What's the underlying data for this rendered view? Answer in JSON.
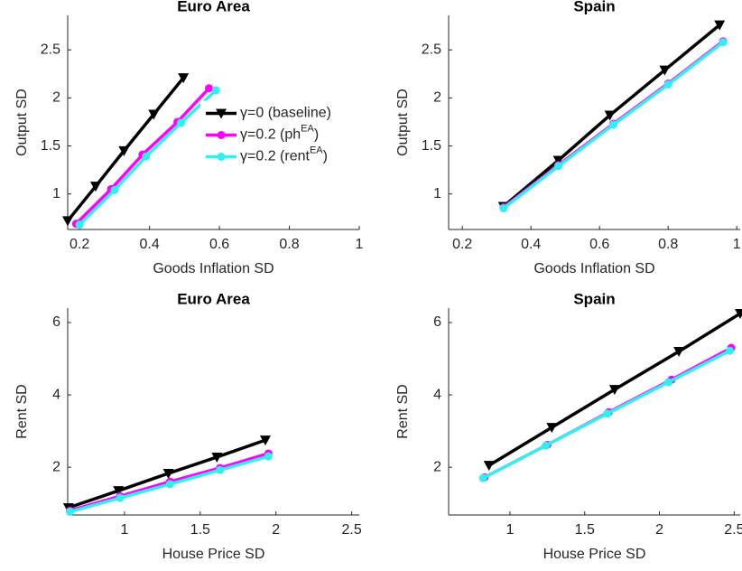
{
  "chart_data": [
    {
      "type": "line",
      "title": "Euro Area",
      "xlabel": "Goods Inflation SD",
      "ylabel": "Output SD",
      "xlim": [
        0.166,
        1.0
      ],
      "ylim": [
        0.63,
        2.86
      ],
      "xticks": [
        0.2,
        0.4,
        0.6,
        0.8,
        1
      ],
      "yticks": [
        1,
        1.5,
        2,
        2.5
      ],
      "legend": "east",
      "series": [
        {
          "name": "γ=0 (baseline)",
          "color": "#000000",
          "marker": "triangle-down",
          "x": [
            0.166,
            0.246,
            0.327,
            0.412,
            0.497
          ],
          "values": [
            0.72,
            1.08,
            1.45,
            1.83,
            2.21
          ]
        },
        {
          "name": "γ=0.2 (phEA)",
          "color": "#ff00ff",
          "marker": "circle",
          "x": [
            0.19,
            0.29,
            0.38,
            0.48,
            0.57
          ],
          "values": [
            0.69,
            1.05,
            1.41,
            1.75,
            2.1
          ]
        },
        {
          "name": "γ=0.2 (rentEA)",
          "color": "#33eeee",
          "marker": "circle",
          "x": [
            0.2,
            0.3,
            0.39,
            0.49,
            0.59
          ],
          "values": [
            0.68,
            1.04,
            1.39,
            1.74,
            2.08
          ]
        }
      ]
    },
    {
      "type": "line",
      "title": "Spain",
      "xlabel": "Goods Inflation SD",
      "ylabel": "Output SD",
      "xlim": [
        0.16,
        1.01
      ],
      "ylim": [
        0.63,
        2.86
      ],
      "xticks": [
        0.2,
        0.4,
        0.6,
        0.8,
        1
      ],
      "yticks": [
        1,
        1.5,
        2,
        2.5
      ],
      "series": [
        {
          "color": "#000000",
          "marker": "triangle-down",
          "x": [
            0.32,
            0.48,
            0.63,
            0.79,
            0.95
          ],
          "values": [
            0.87,
            1.35,
            1.82,
            2.29,
            2.76
          ]
        },
        {
          "color": "#ff00ff",
          "marker": "circle",
          "x": [
            0.32,
            0.48,
            0.64,
            0.8,
            0.96
          ],
          "values": [
            0.86,
            1.3,
            1.73,
            2.15,
            2.59
          ]
        },
        {
          "color": "#33eeee",
          "marker": "circle",
          "x": [
            0.32,
            0.48,
            0.64,
            0.8,
            0.96
          ],
          "values": [
            0.85,
            1.29,
            1.72,
            2.14,
            2.58
          ]
        }
      ]
    },
    {
      "type": "line",
      "title": "Euro Area",
      "xlabel": "House Price SD",
      "ylabel": "Rent SD",
      "xlim": [
        0.625,
        2.55
      ],
      "ylim": [
        0.68,
        6.4
      ],
      "xticks": [
        1,
        1.5,
        2,
        2.5
      ],
      "yticks": [
        2,
        4,
        6
      ],
      "series": [
        {
          "color": "#000000",
          "marker": "triangle-down",
          "x": [
            0.63,
            0.96,
            1.29,
            1.61,
            1.93
          ],
          "values": [
            0.88,
            1.35,
            1.83,
            2.28,
            2.75
          ]
        },
        {
          "color": "#ff00ff",
          "marker": "circle",
          "x": [
            0.64,
            0.97,
            1.3,
            1.63,
            1.95
          ],
          "values": [
            0.8,
            1.2,
            1.6,
            1.98,
            2.38
          ]
        },
        {
          "color": "#33eeee",
          "marker": "circle",
          "x": [
            0.64,
            0.97,
            1.3,
            1.63,
            1.95
          ],
          "values": [
            0.77,
            1.15,
            1.53,
            1.92,
            2.3
          ]
        }
      ]
    },
    {
      "type": "line",
      "title": "Spain",
      "xlabel": "House Price SD",
      "ylabel": "Rent SD",
      "xlim": [
        0.59,
        2.54
      ],
      "ylim": [
        0.68,
        6.4
      ],
      "xticks": [
        1,
        1.5,
        2,
        2.5
      ],
      "yticks": [
        2,
        4,
        6
      ],
      "series": [
        {
          "color": "#000000",
          "marker": "triangle-down",
          "x": [
            0.86,
            1.28,
            1.7,
            2.13,
            2.54
          ],
          "values": [
            2.05,
            3.1,
            4.15,
            5.2,
            6.25
          ]
        },
        {
          "color": "#ff00ff",
          "marker": "circle",
          "x": [
            0.83,
            1.25,
            1.66,
            2.08,
            2.48
          ],
          "values": [
            1.72,
            2.62,
            3.52,
            4.42,
            5.3
          ]
        },
        {
          "color": "#33eeee",
          "marker": "circle",
          "x": [
            0.82,
            1.24,
            1.65,
            2.06,
            2.47
          ],
          "values": [
            1.7,
            2.6,
            3.48,
            4.35,
            5.22
          ]
        }
      ]
    }
  ]
}
